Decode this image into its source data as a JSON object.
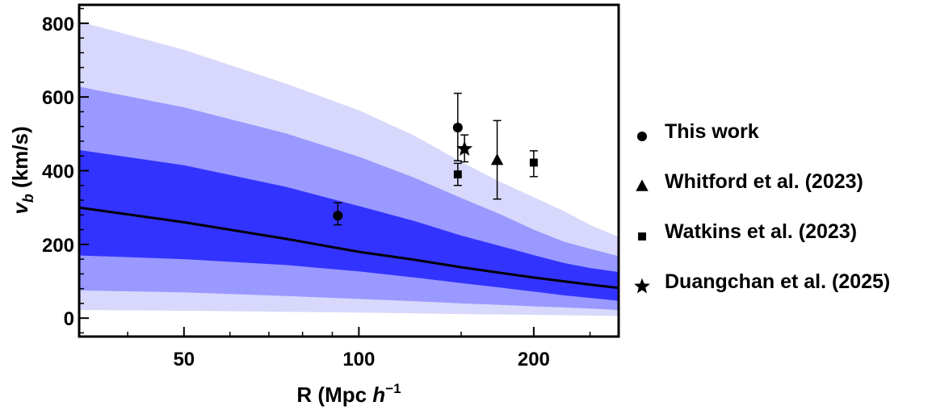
{
  "chart_data": {
    "type": "scatter",
    "title": "",
    "xlabel": "R (Mpc h⁻¹)",
    "ylabel": "v_b (km/s)",
    "x_scale": "log",
    "xlim": [
      33,
      280
    ],
    "ylim": [
      -50,
      850
    ],
    "x_ticks": [
      50,
      100,
      200
    ],
    "y_ticks": [
      0,
      200,
      400,
      600,
      800
    ],
    "grid": false,
    "legend_position": "right",
    "colors": {
      "band_1sigma": "#3333ff",
      "band_2sigma": "#9999ff",
      "band_3sigma": "#d8d8fc",
      "theory_line": "#000000",
      "markers": "#000000"
    },
    "bands": {
      "x": [
        33,
        50,
        75,
        100,
        125,
        150,
        175,
        200,
        225,
        250,
        280
      ],
      "sigma3_upper": [
        805,
        728,
        636,
        564,
        494,
        424,
        370,
        328,
        291,
        253,
        220
      ],
      "sigma2_upper": [
        628,
        572,
        501,
        438,
        380,
        326,
        282,
        240,
        208,
        188,
        168
      ],
      "sigma1_upper": [
        456,
        415,
        356,
        304,
        263,
        224,
        196,
        171,
        150,
        136,
        125
      ],
      "sigma1_lower": [
        170,
        160,
        144,
        127,
        110,
        95,
        83,
        72,
        62,
        55,
        47
      ],
      "sigma2_lower": [
        75,
        70,
        60,
        52,
        46,
        40,
        36,
        32,
        29,
        26,
        22
      ],
      "sigma3_lower": [
        22,
        20,
        17,
        15,
        13,
        11,
        10,
        9,
        8,
        7,
        6
      ]
    },
    "theory_line": {
      "x": [
        33,
        50,
        75,
        100,
        125,
        150,
        175,
        200,
        225,
        250,
        280
      ],
      "y": [
        300,
        260,
        215,
        180,
        158,
        138,
        123,
        110,
        100,
        91,
        82
      ]
    },
    "series": [
      {
        "name": "This work",
        "marker": "circle",
        "points": [
          {
            "x": 92,
            "y": 278,
            "err_minus": 25,
            "err_plus": 35
          },
          {
            "x": 148,
            "y": 517,
            "err_minus": 90,
            "err_plus": 93
          }
        ]
      },
      {
        "name": "Whitford et al. (2023)",
        "marker": "triangle",
        "points": [
          {
            "x": 173,
            "y": 428,
            "err_minus": 105,
            "err_plus": 108
          }
        ]
      },
      {
        "name": "Watkins et al. (2023)",
        "marker": "square",
        "points": [
          {
            "x": 148,
            "y": 390,
            "err_minus": 30,
            "err_plus": 30
          },
          {
            "x": 200,
            "y": 422,
            "err_minus": 38,
            "err_plus": 32
          }
        ]
      },
      {
        "name": "Duangchan et al. (2025)",
        "marker": "star",
        "points": [
          {
            "x": 152,
            "y": 459,
            "err_minus": 35,
            "err_plus": 38
          }
        ]
      }
    ]
  }
}
